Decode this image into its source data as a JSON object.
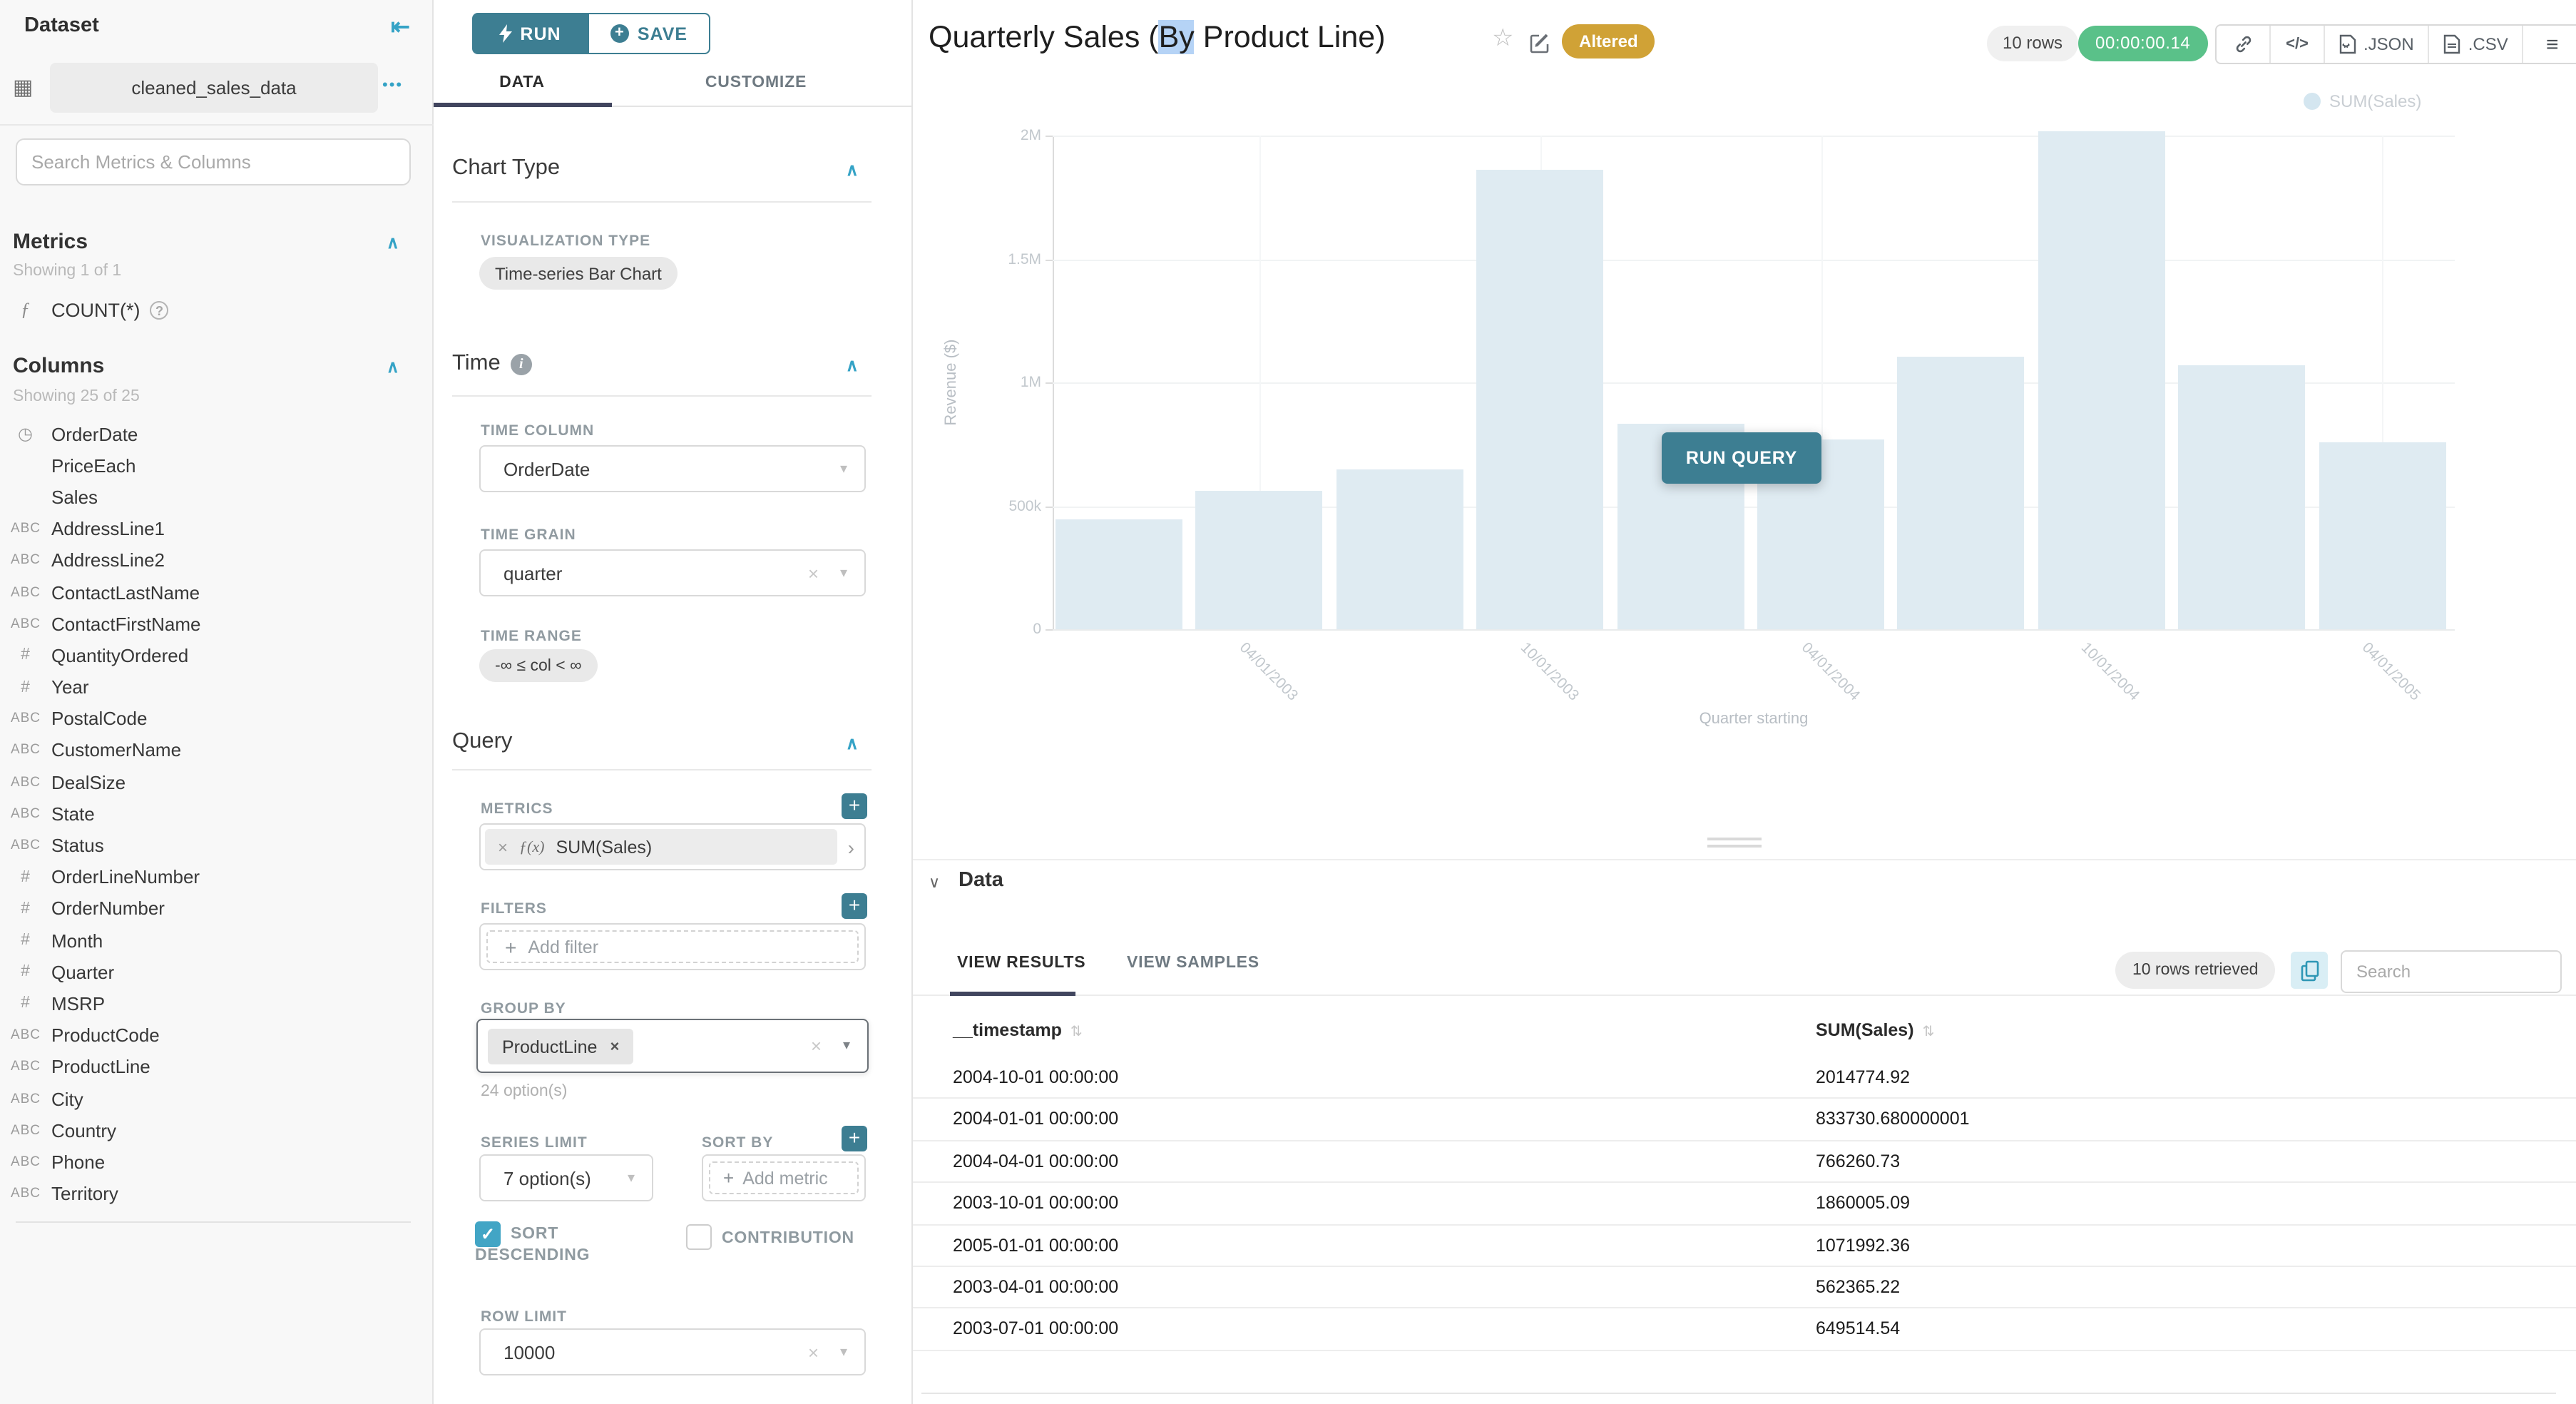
{
  "colors": {
    "accent_teal_dark": "#3d7e92",
    "accent_teal_light": "#35a3c6",
    "tab_indicator": "#41455e",
    "altered_badge": "#d0a236",
    "timer_green": "#5ac189",
    "bar_fill": "#dfebf2",
    "checkbox_checked": "#42a5c5"
  },
  "icons": {
    "collapse_left": "⇤",
    "more": "•••",
    "grid": "▦",
    "function": "ƒ",
    "help": "?",
    "clock": "◷",
    "abc": "ABC",
    "hash": "#",
    "chevron_up": "∧",
    "chevron_down": "∨",
    "caret_down": "▾",
    "clear": "×",
    "expand": "›",
    "plus": "+",
    "star": "☆",
    "sort": "⇅",
    "menu": "≡",
    "code": "</>",
    "check": "✓",
    "info": "i"
  },
  "dataset_panel": {
    "title": "Dataset",
    "dataset_name": "cleaned_sales_data",
    "search_placeholder": "Search Metrics & Columns",
    "metrics_section": {
      "title": "Metrics",
      "showing": "Showing 1 of 1",
      "items": [
        {
          "icon": "function",
          "label": "COUNT(*)"
        }
      ]
    },
    "columns_section": {
      "title": "Columns",
      "showing": "Showing 25 of 25",
      "items": [
        {
          "icon": "clock",
          "label": "OrderDate"
        },
        {
          "icon": "none",
          "label": "PriceEach"
        },
        {
          "icon": "none",
          "label": "Sales"
        },
        {
          "icon": "abc",
          "label": "AddressLine1"
        },
        {
          "icon": "abc",
          "label": "AddressLine2"
        },
        {
          "icon": "abc",
          "label": "ContactLastName"
        },
        {
          "icon": "abc",
          "label": "ContactFirstName"
        },
        {
          "icon": "hash",
          "label": "QuantityOrdered"
        },
        {
          "icon": "hash",
          "label": "Year"
        },
        {
          "icon": "abc",
          "label": "PostalCode"
        },
        {
          "icon": "abc",
          "label": "CustomerName"
        },
        {
          "icon": "abc",
          "label": "DealSize"
        },
        {
          "icon": "abc",
          "label": "State"
        },
        {
          "icon": "abc",
          "label": "Status"
        },
        {
          "icon": "hash",
          "label": "OrderLineNumber"
        },
        {
          "icon": "hash",
          "label": "OrderNumber"
        },
        {
          "icon": "hash",
          "label": "Month"
        },
        {
          "icon": "hash",
          "label": "Quarter"
        },
        {
          "icon": "hash",
          "label": "MSRP"
        },
        {
          "icon": "abc",
          "label": "ProductCode"
        },
        {
          "icon": "abc",
          "label": "ProductLine"
        },
        {
          "icon": "abc",
          "label": "City"
        },
        {
          "icon": "abc",
          "label": "Country"
        },
        {
          "icon": "abc",
          "label": "Phone"
        },
        {
          "icon": "abc",
          "label": "Territory"
        }
      ]
    }
  },
  "control_panel": {
    "run_label": "RUN",
    "save_label": "SAVE",
    "tabs": {
      "data": "DATA",
      "customize": "CUSTOMIZE"
    },
    "chart_type": {
      "section": "Chart Type",
      "viz_type_label": "VISUALIZATION TYPE",
      "viz_type": "Time-series Bar Chart"
    },
    "time": {
      "section": "Time",
      "time_column_label": "TIME COLUMN",
      "time_column": "OrderDate",
      "time_grain_label": "TIME GRAIN",
      "time_grain": "quarter",
      "time_range_label": "TIME RANGE",
      "time_range": "-∞ ≤ col < ∞"
    },
    "query": {
      "section": "Query",
      "metrics_label": "METRICS",
      "metric_fx": "ƒ(x)",
      "metric": "SUM(Sales)",
      "filters_label": "FILTERS",
      "add_filter": "Add filter",
      "group_by_label": "GROUP BY",
      "group_by_value": "ProductLine",
      "options_hint": "24 option(s)",
      "series_limit_label": "SERIES LIMIT",
      "series_limit": "7 option(s)",
      "sort_by_label": "SORT BY",
      "add_metric": "Add metric",
      "sort_descending_label": "SORT DESCENDING",
      "contribution_label": "CONTRIBUTION",
      "row_limit_label": "ROW LIMIT",
      "row_limit": "10000"
    }
  },
  "chart_header": {
    "title_before": "Quarterly Sales (",
    "title_selected": "By",
    "title_after": " Product Line)",
    "altered_badge": "Altered",
    "rows_badge": "10 rows",
    "timer": "00:00:00.14",
    "export_json": ".JSON",
    "export_csv": ".CSV"
  },
  "chart_overlay": {
    "run_query_label": "RUN QUERY"
  },
  "chart_data": {
    "type": "bar",
    "title": "Quarterly Sales (By Product Line)",
    "series_name": "SUM(Sales)",
    "x": [
      "2003-01-01",
      "2003-04-01",
      "2003-07-01",
      "2003-10-01",
      "2004-01-01",
      "2004-04-01",
      "2004-07-01",
      "2004-10-01",
      "2005-01-01",
      "2005-04-01"
    ],
    "values": [
      445000,
      562365.22,
      649514.54,
      1860005.09,
      833730.68,
      766260.73,
      1105000,
      2014774.92,
      1071992.36,
      755000
    ],
    "xlabel": "Quarter starting",
    "ylabel": "Revenue ($)",
    "ylim": [
      0,
      2000000
    ],
    "ytick_labels": [
      "0",
      "500k",
      "1M",
      "1.5M",
      "2M"
    ],
    "xtick_labels": [
      "04/01/2003",
      "10/01/2003",
      "04/01/2004",
      "10/01/2004",
      "04/01/2005"
    ],
    "legend_position": "top-right",
    "grid": true,
    "bar_color": "#dfebf2",
    "faded": true
  },
  "data_panel": {
    "title": "Data",
    "tab_results": "VIEW RESULTS",
    "tab_samples": "VIEW SAMPLES",
    "rows_retrieved": "10 rows retrieved",
    "search_placeholder": "Search",
    "columns": [
      "__timestamp",
      "SUM(Sales)"
    ],
    "rows": [
      [
        "2004-10-01 00:00:00",
        "2014774.92"
      ],
      [
        "2004-01-01 00:00:00",
        "833730.680000001"
      ],
      [
        "2004-04-01 00:00:00",
        "766260.73"
      ],
      [
        "2003-10-01 00:00:00",
        "1860005.09"
      ],
      [
        "2005-01-01 00:00:00",
        "1071992.36"
      ],
      [
        "2003-04-01 00:00:00",
        "562365.22"
      ],
      [
        "2003-07-01 00:00:00",
        "649514.54"
      ]
    ]
  }
}
